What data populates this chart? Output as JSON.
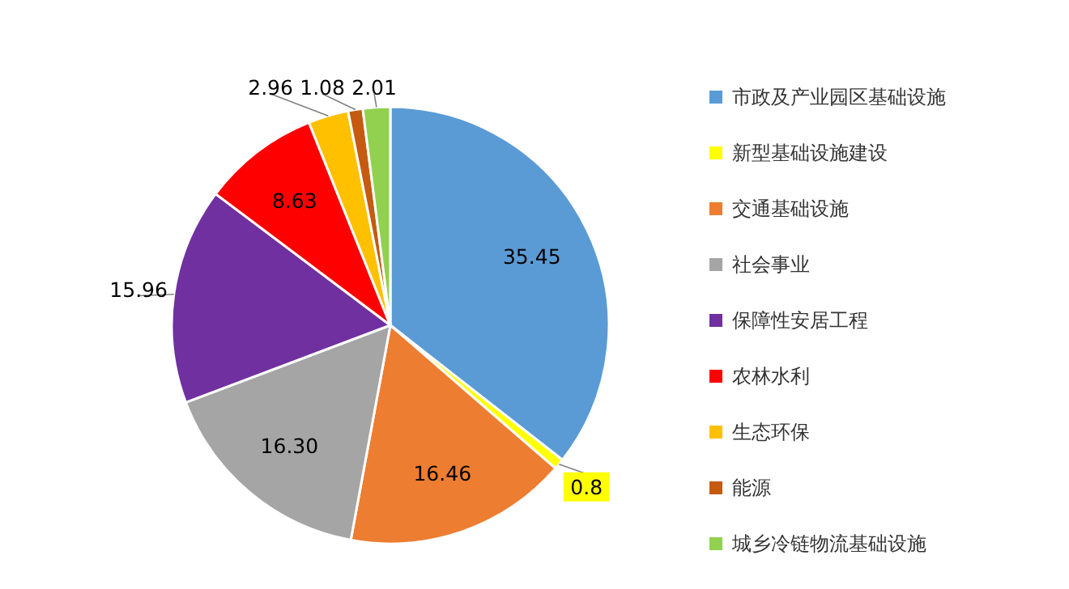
{
  "chart_data": {
    "type": "pie",
    "categories": [
      "市政及产业园区基础设施",
      "新型基础设施建设",
      "交通基础设施",
      "社会事业",
      "保障性安居工程",
      "农林水利",
      "生态环保",
      "能源",
      "城乡冷链物流基础设施"
    ],
    "values": [
      35.45,
      0.8,
      16.46,
      16.3,
      15.96,
      8.63,
      2.96,
      1.08,
      2.01
    ],
    "value_labels": [
      "35.45",
      "0.8",
      "16.46",
      "16.30",
      "15.96",
      "8.63",
      "2.96",
      "1.08",
      "2.01"
    ],
    "colors": [
      "#5b9bd5",
      "#ffff00",
      "#ed7d31",
      "#a5a5a5",
      "#7030a0",
      "#ff0000",
      "#ffc000",
      "#c55a11",
      "#92d050"
    ],
    "legend": "right"
  }
}
